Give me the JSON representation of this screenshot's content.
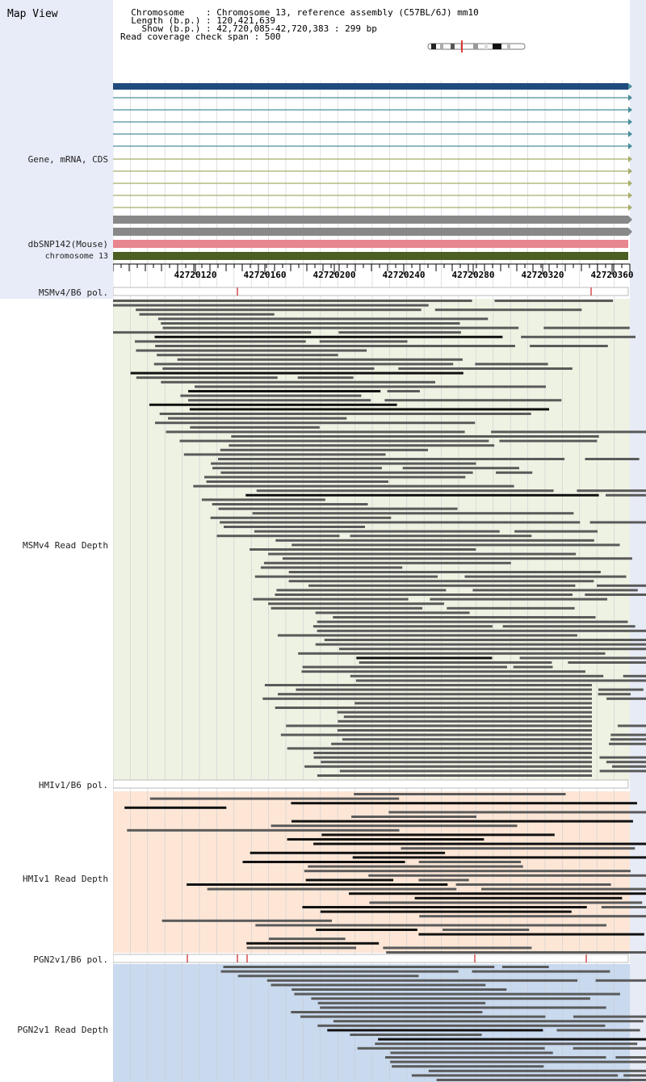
{
  "header": {
    "title": "Map View",
    "info_lines": [
      "  Chromosome    : Chromosome 13, reference assembly (C57BL/6J) mm10",
      "  Length (b.p.) : 120,421,639",
      "    Show (b.p.) : 42,720,085-42,720,383 : 299 bp",
      "Read coverage check span : 500"
    ]
  },
  "tracks": {
    "gene_label": "Gene, mRNA, CDS",
    "dbsnp_label": "dbSNP142(Mouse)",
    "chrom_label": "chromosome 13",
    "msm_pol_label": "MSMv4/B6 pol.",
    "msm_depth_label": "MSMv4 Read Depth",
    "hmi_pol_label": "HMIv1/B6 pol.",
    "hmi_depth_label": "HMIv1 Read Depth",
    "pgn_pol_label": "PGN2v1/B6 pol.",
    "pgn_depth_label": "PGN2v1 Read Depth"
  },
  "ruler": {
    "ticks": [
      "42720120",
      "42720160",
      "42720200",
      "42720240",
      "42720280",
      "42720320",
      "42720360"
    ]
  },
  "colors": {
    "gene_main": "#1f4a7d",
    "mrna_teal": "#4a8f9a",
    "cds_olive": "#a8ae6a",
    "gray_bar": "#888888",
    "dbsnp": "#e8868e",
    "chromosome": "#4d5e22",
    "msm_bg": "#eef2e2",
    "hmi_bg": "#fde6d6",
    "pgn_bg": "#c9d9ee",
    "read": "#5a5a5a",
    "read_dark": "#111111",
    "snp_mark": "#cc2222"
  }
}
